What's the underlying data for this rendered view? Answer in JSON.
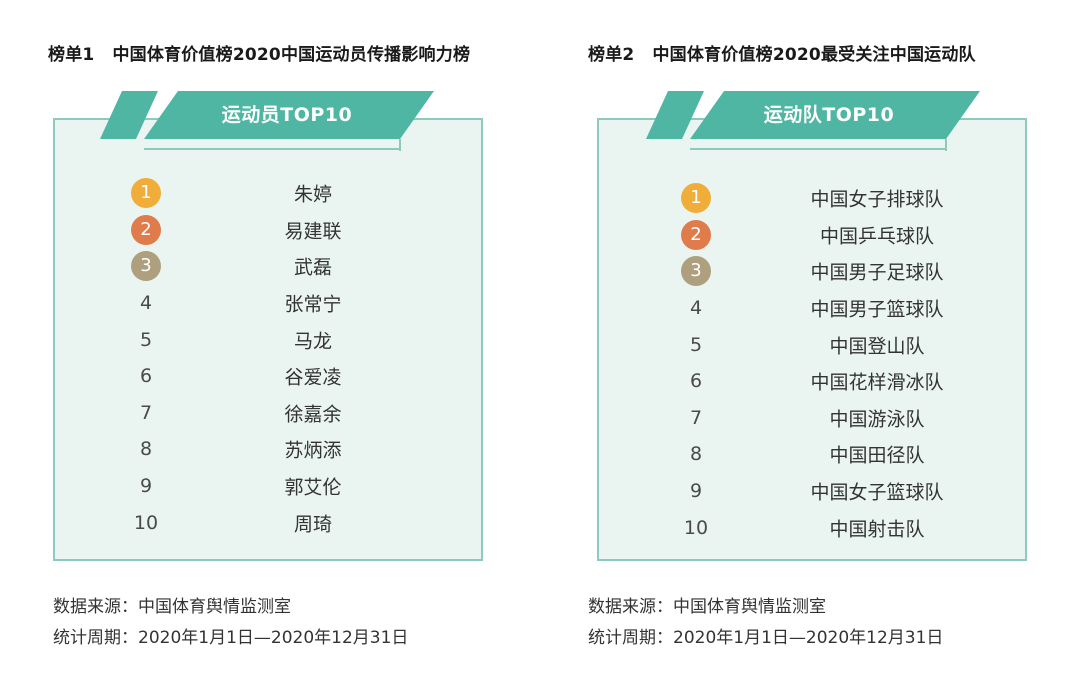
{
  "list1": {
    "label": "榜单1",
    "title": "中国体育价值榜2020中国运动员传播影响力榜",
    "banner": "运动员TOP10",
    "items": [
      {
        "rank": "1",
        "name": "朱婷"
      },
      {
        "rank": "2",
        "name": "易建联"
      },
      {
        "rank": "3",
        "name": "武磊"
      },
      {
        "rank": "4",
        "name": "张常宁"
      },
      {
        "rank": "5",
        "name": "马龙"
      },
      {
        "rank": "6",
        "name": "谷爱凌"
      },
      {
        "rank": "7",
        "name": "徐嘉余"
      },
      {
        "rank": "8",
        "name": "苏炳添"
      },
      {
        "rank": "9",
        "name": "郭艾伦"
      },
      {
        "rank": "10",
        "name": "周琦"
      }
    ],
    "source": "数据来源：中国体育舆情监测室",
    "period": "统计周期：2020年1月1日—2020年12月31日"
  },
  "list2": {
    "label": "榜单2",
    "title": "中国体育价值榜2020最受关注中国运动队",
    "banner": "运动队TOP10",
    "items": [
      {
        "rank": "1",
        "name": "中国女子排球队"
      },
      {
        "rank": "2",
        "name": "中国乒乓球队"
      },
      {
        "rank": "3",
        "name": "中国男子足球队"
      },
      {
        "rank": "4",
        "name": "中国男子篮球队"
      },
      {
        "rank": "5",
        "name": "中国登山队"
      },
      {
        "rank": "6",
        "name": "中国花样滑冰队"
      },
      {
        "rank": "7",
        "name": "中国游泳队"
      },
      {
        "rank": "8",
        "name": "中国田径队"
      },
      {
        "rank": "9",
        "name": "中国女子篮球队"
      },
      {
        "rank": "10",
        "name": "中国射击队"
      }
    ],
    "source": "数据来源：中国体育舆情监测室",
    "period": "统计周期：2020年1月1日—2020年12月31日"
  },
  "colors": {
    "banner": "#4fb6a3",
    "card_border": "#8ec9be",
    "card_bg": "#eaf5f1",
    "gold": "#f0ad3a",
    "silver": "#e07c4c",
    "bronze": "#aea07e"
  }
}
